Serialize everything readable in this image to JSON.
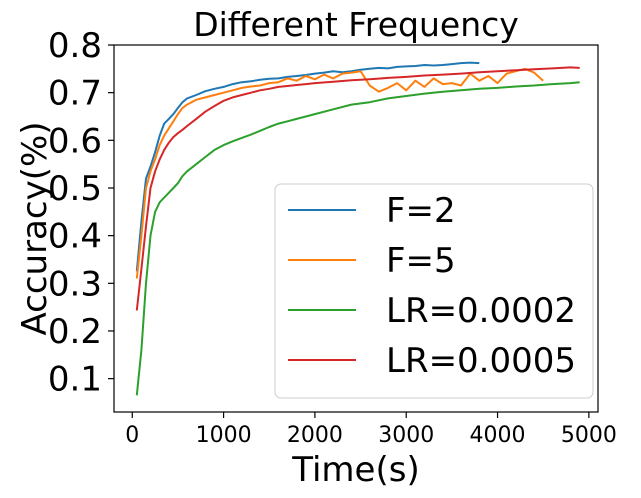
{
  "chart_data": {
    "type": "line",
    "title": "Different Frequency",
    "xlabel": "Time(s)",
    "ylabel": "Accuracy(%)",
    "xlim": [
      -200,
      5100
    ],
    "ylim": [
      0.03,
      0.8
    ],
    "xticks": [
      0,
      1000,
      2000,
      3000,
      4000,
      5000
    ],
    "yticks": [
      0.1,
      0.2,
      0.3,
      0.4,
      0.5,
      0.6,
      0.7,
      0.8
    ],
    "grid": false,
    "legend_position": "lower-right",
    "series": [
      {
        "name": "F=2",
        "color": "#1f77b4",
        "x": [
          50,
          100,
          150,
          200,
          250,
          300,
          350,
          400,
          450,
          500,
          550,
          600,
          700,
          800,
          900,
          1000,
          1100,
          1200,
          1300,
          1400,
          1500,
          1600,
          1700,
          1800,
          1900,
          2000,
          2100,
          2200,
          2300,
          2400,
          2500,
          2600,
          2700,
          2800,
          2900,
          3000,
          3100,
          3200,
          3300,
          3400,
          3500,
          3600,
          3700,
          3800
        ],
        "y": [
          0.325,
          0.43,
          0.52,
          0.545,
          0.575,
          0.61,
          0.635,
          0.645,
          0.655,
          0.668,
          0.68,
          0.688,
          0.695,
          0.703,
          0.708,
          0.712,
          0.718,
          0.722,
          0.724,
          0.727,
          0.729,
          0.73,
          0.733,
          0.735,
          0.737,
          0.74,
          0.742,
          0.745,
          0.743,
          0.745,
          0.748,
          0.75,
          0.752,
          0.751,
          0.754,
          0.755,
          0.756,
          0.758,
          0.757,
          0.758,
          0.76,
          0.762,
          0.763,
          0.762
        ]
      },
      {
        "name": "F=5",
        "color": "#ff7f0e",
        "x": [
          50,
          100,
          150,
          200,
          250,
          300,
          350,
          400,
          450,
          500,
          550,
          600,
          700,
          800,
          900,
          1000,
          1100,
          1200,
          1300,
          1400,
          1500,
          1600,
          1700,
          1800,
          1900,
          2000,
          2100,
          2200,
          2300,
          2400,
          2500,
          2600,
          2700,
          2800,
          2900,
          3000,
          3100,
          3200,
          3300,
          3400,
          3500,
          3600,
          3700,
          3800,
          3900,
          4000,
          4100,
          4200,
          4300,
          4400,
          4500
        ],
        "y": [
          0.31,
          0.4,
          0.5,
          0.535,
          0.56,
          0.59,
          0.61,
          0.625,
          0.64,
          0.655,
          0.668,
          0.675,
          0.685,
          0.69,
          0.695,
          0.7,
          0.705,
          0.71,
          0.713,
          0.715,
          0.72,
          0.722,
          0.73,
          0.725,
          0.735,
          0.728,
          0.738,
          0.73,
          0.74,
          0.742,
          0.745,
          0.715,
          0.702,
          0.71,
          0.72,
          0.705,
          0.725,
          0.712,
          0.73,
          0.718,
          0.72,
          0.715,
          0.74,
          0.725,
          0.735,
          0.72,
          0.74,
          0.745,
          0.75,
          0.742,
          0.725
        ]
      },
      {
        "name": "LR=0.0002",
        "color": "#2ca02c",
        "x": [
          50,
          100,
          150,
          200,
          250,
          300,
          350,
          400,
          450,
          500,
          550,
          600,
          700,
          800,
          900,
          1000,
          1100,
          1200,
          1300,
          1400,
          1500,
          1600,
          1700,
          1800,
          1900,
          2000,
          2200,
          2400,
          2600,
          2800,
          3000,
          3200,
          3400,
          3600,
          3800,
          4000,
          4200,
          4400,
          4600,
          4800,
          4900
        ],
        "y": [
          0.065,
          0.16,
          0.3,
          0.4,
          0.45,
          0.47,
          0.48,
          0.49,
          0.5,
          0.51,
          0.525,
          0.535,
          0.55,
          0.565,
          0.58,
          0.59,
          0.598,
          0.605,
          0.612,
          0.62,
          0.628,
          0.635,
          0.64,
          0.645,
          0.65,
          0.655,
          0.665,
          0.675,
          0.68,
          0.688,
          0.693,
          0.698,
          0.702,
          0.705,
          0.708,
          0.71,
          0.713,
          0.715,
          0.718,
          0.72,
          0.722
        ]
      },
      {
        "name": "LR=0.0005",
        "color": "#d62728",
        "x": [
          50,
          100,
          150,
          200,
          250,
          300,
          350,
          400,
          450,
          500,
          550,
          600,
          700,
          800,
          900,
          1000,
          1100,
          1200,
          1300,
          1400,
          1500,
          1600,
          1700,
          1800,
          1900,
          2000,
          2200,
          2400,
          2600,
          2800,
          3000,
          3200,
          3400,
          3600,
          3800,
          4000,
          4200,
          4400,
          4600,
          4800,
          4900
        ],
        "y": [
          0.243,
          0.33,
          0.42,
          0.5,
          0.535,
          0.56,
          0.58,
          0.595,
          0.607,
          0.615,
          0.622,
          0.63,
          0.645,
          0.66,
          0.672,
          0.683,
          0.69,
          0.695,
          0.7,
          0.705,
          0.708,
          0.712,
          0.714,
          0.716,
          0.718,
          0.72,
          0.723,
          0.726,
          0.728,
          0.731,
          0.733,
          0.736,
          0.738,
          0.74,
          0.743,
          0.745,
          0.747,
          0.749,
          0.751,
          0.753,
          0.752
        ]
      }
    ]
  }
}
